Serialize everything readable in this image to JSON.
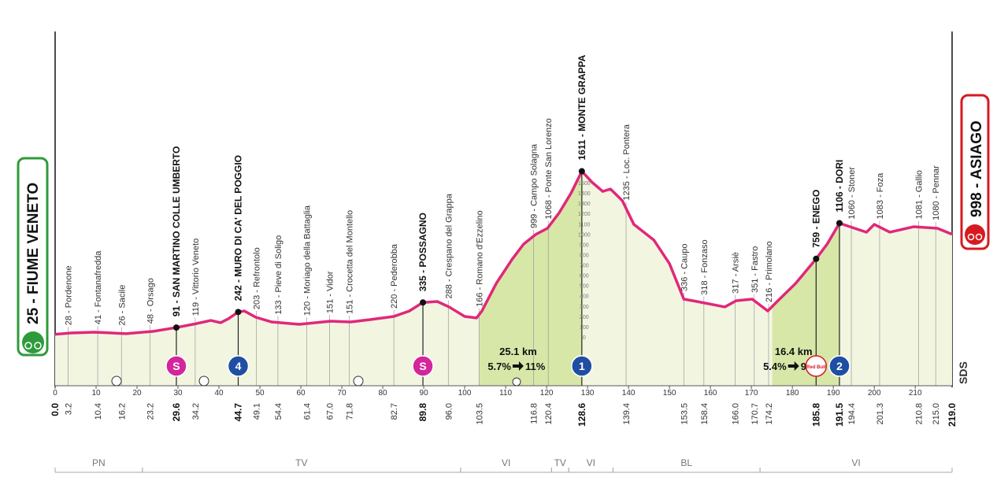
{
  "start": {
    "label": "25 - FIUME VENETO"
  },
  "finish": {
    "label": "998 - ASIAGO"
  },
  "chart_data": {
    "type": "profile",
    "xlim": [
      0,
      219
    ],
    "ylim": [
      -475,
      2970
    ],
    "xticks": [
      0,
      10,
      20,
      30,
      40,
      50,
      60,
      70,
      80,
      90,
      100,
      110,
      120,
      130,
      140,
      150,
      160,
      170,
      180,
      190,
      200,
      210
    ],
    "yticks": [
      0,
      100,
      200,
      300,
      400,
      500,
      600,
      700,
      800,
      900,
      1000,
      1100,
      1200,
      1300,
      1400,
      1500
    ],
    "color": "#e0287a",
    "fill": "#f2f6e1",
    "climb_fill": "#d7e7a8",
    "x": [
      0,
      3.8,
      9.6,
      17.3,
      24,
      29.6,
      34.6,
      38,
      40.4,
      42.3,
      44.7,
      46.2,
      49,
      52.9,
      59.6,
      67.3,
      72.1,
      76.9,
      82.7,
      86.5,
      89.8,
      93.3,
      96.2,
      100,
      102.9,
      104.2,
      107.7,
      111.5,
      114.4,
      117.3,
      120.2,
      123.1,
      126,
      128.6,
      131.2,
      133.7,
      135.6,
      138.5,
      141.3,
      146.2,
      150,
      153.5,
      156.7,
      160.6,
      163.5,
      166.3,
      170.2,
      174,
      175.9,
      180.8,
      185.8,
      188.5,
      191.5,
      195.2,
      198.1,
      200,
      203.8,
      209.6,
      215.4,
      219
    ],
    "values": [
      25,
      38,
      46,
      31,
      54,
      91,
      130,
      160,
      138,
      176,
      242,
      252,
      191,
      145,
      122,
      153,
      145,
      168,
      199,
      252,
      335,
      344,
      291,
      199,
      184,
      252,
      520,
      750,
      903,
      995,
      1056,
      1209,
      1400,
      1611,
      1500,
      1415,
      1438,
      1324,
      1094,
      941,
      712,
      367,
      344,
      314,
      291,
      352,
      367,
      252,
      329,
      520,
      759,
      903,
      1106,
      1056,
      1018,
      1094,
      1018,
      1071,
      1056,
      998
    ],
    "waypoints": [
      {
        "km": {
          "value": 0,
          "label": "0.0"
        },
        "bold": true
      },
      {
        "km": 3.2,
        "label": "28 - Pordenone"
      },
      {
        "km": 10.4,
        "label": "41 - Fontanafredda"
      },
      {
        "km": 16.2,
        "label": "26 - Sacile"
      },
      {
        "km": 23.2,
        "label": "48 - Orsago"
      },
      {
        "km": 29.6,
        "label": "91 - SAN MARTINO COLLE UMBERTO",
        "bold": true
      },
      {
        "km": 34.2,
        "label": "119 - Vittorio Veneto"
      },
      {
        "km": 44.7,
        "label": "242 - MURO DI CA' DEL POGGIO",
        "bold": true
      },
      {
        "km": 49.1,
        "label": "203 - Refrontolo"
      },
      {
        "km": 54.4,
        "label": "133 - Pieve di Soligo"
      },
      {
        "km": 61.4,
        "label": "120 - Moriago della Battaglia"
      },
      {
        "km": {
          "value": 67,
          "label": "67.0"
        },
        "label": "151 - Vidor"
      },
      {
        "km": 71.8,
        "label": "151 - Crocetta del Montello"
      },
      {
        "km": 82.7,
        "label": "220 - Pederobba"
      },
      {
        "km": 89.8,
        "label": "335 - POSSAGNO",
        "bold": true
      },
      {
        "km": {
          "value": 96,
          "label": "96.0"
        },
        "label": "288 - Crespano del Grappa"
      },
      {
        "km": 103.5,
        "label": "166 - Romano d'Ezzelino"
      },
      {
        "km": 116.8,
        "label": "999 - Campo Solagna"
      },
      {
        "km": 120.4,
        "label": "1068 - Ponte San Lorenzo"
      },
      {
        "km": 128.6,
        "label": "1611 - MONTE GRAPPA",
        "bold": true
      },
      {
        "km": 139.4,
        "label": "1235 - Loc. Pontera"
      },
      {
        "km": 153.5,
        "label": "336 - Caupo"
      },
      {
        "km": 158.4,
        "label": "318 - Fonzaso"
      },
      {
        "km": {
          "value": 166,
          "label": "166.0"
        },
        "label": "317 - Arsiè"
      },
      {
        "km": 170.7,
        "label": "351 - Fastro"
      },
      {
        "km": 174.2,
        "label": "216 - Primolano"
      },
      {
        "km": 185.8,
        "label": "759 - ENEGO",
        "bold": true
      },
      {
        "km": 191.5,
        "label": "1106 - DORI",
        "bold": true
      },
      {
        "km": 194.4,
        "label": "1060 - Stoner"
      },
      {
        "km": 201.3,
        "label": "1083 - Foza"
      },
      {
        "km": 210.8,
        "label": "1081 - Gallio"
      },
      {
        "km": {
          "value": 215,
          "label": "215.0"
        },
        "label": "1080 - Pennar"
      },
      {
        "km": {
          "value": 219,
          "label": "219.0"
        },
        "bold": true
      }
    ],
    "climbs": [
      {
        "start": 103.5,
        "end": 128.6,
        "length": "25.1 km",
        "avg": "5.7%",
        "max": "11%"
      },
      {
        "start": 175.1,
        "end": 191.5,
        "length": "16.4 km",
        "avg": "5.4%",
        "max": "9%"
      }
    ],
    "markers": [
      {
        "km": 29.6,
        "label": "S",
        "kind": "sprint"
      },
      {
        "km": 44.7,
        "label": "4",
        "kind": "kom"
      },
      {
        "km": 89.8,
        "label": "S",
        "kind": "sprint"
      },
      {
        "km": 128.6,
        "label": "1",
        "kind": "kom"
      },
      {
        "km": 185.8,
        "label": "Red Bull",
        "kind": "bonus"
      },
      {
        "km": 191.5,
        "label": "2",
        "kind": "kom"
      }
    ],
    "regions": [
      {
        "label": "PN",
        "start": 0,
        "end": 21.3
      },
      {
        "label": "TV",
        "start": 21.3,
        "end": 99
      },
      {
        "label": "VI",
        "start": 99,
        "end": 121.2
      },
      {
        "label": "TV",
        "start": 121.2,
        "end": 125.4
      },
      {
        "label": "VI",
        "start": 125.4,
        "end": 136.2
      },
      {
        "label": "BL",
        "start": 136.2,
        "end": 172.1
      },
      {
        "label": "VI",
        "start": 172.1,
        "end": 219
      }
    ],
    "logo": "SDS"
  }
}
